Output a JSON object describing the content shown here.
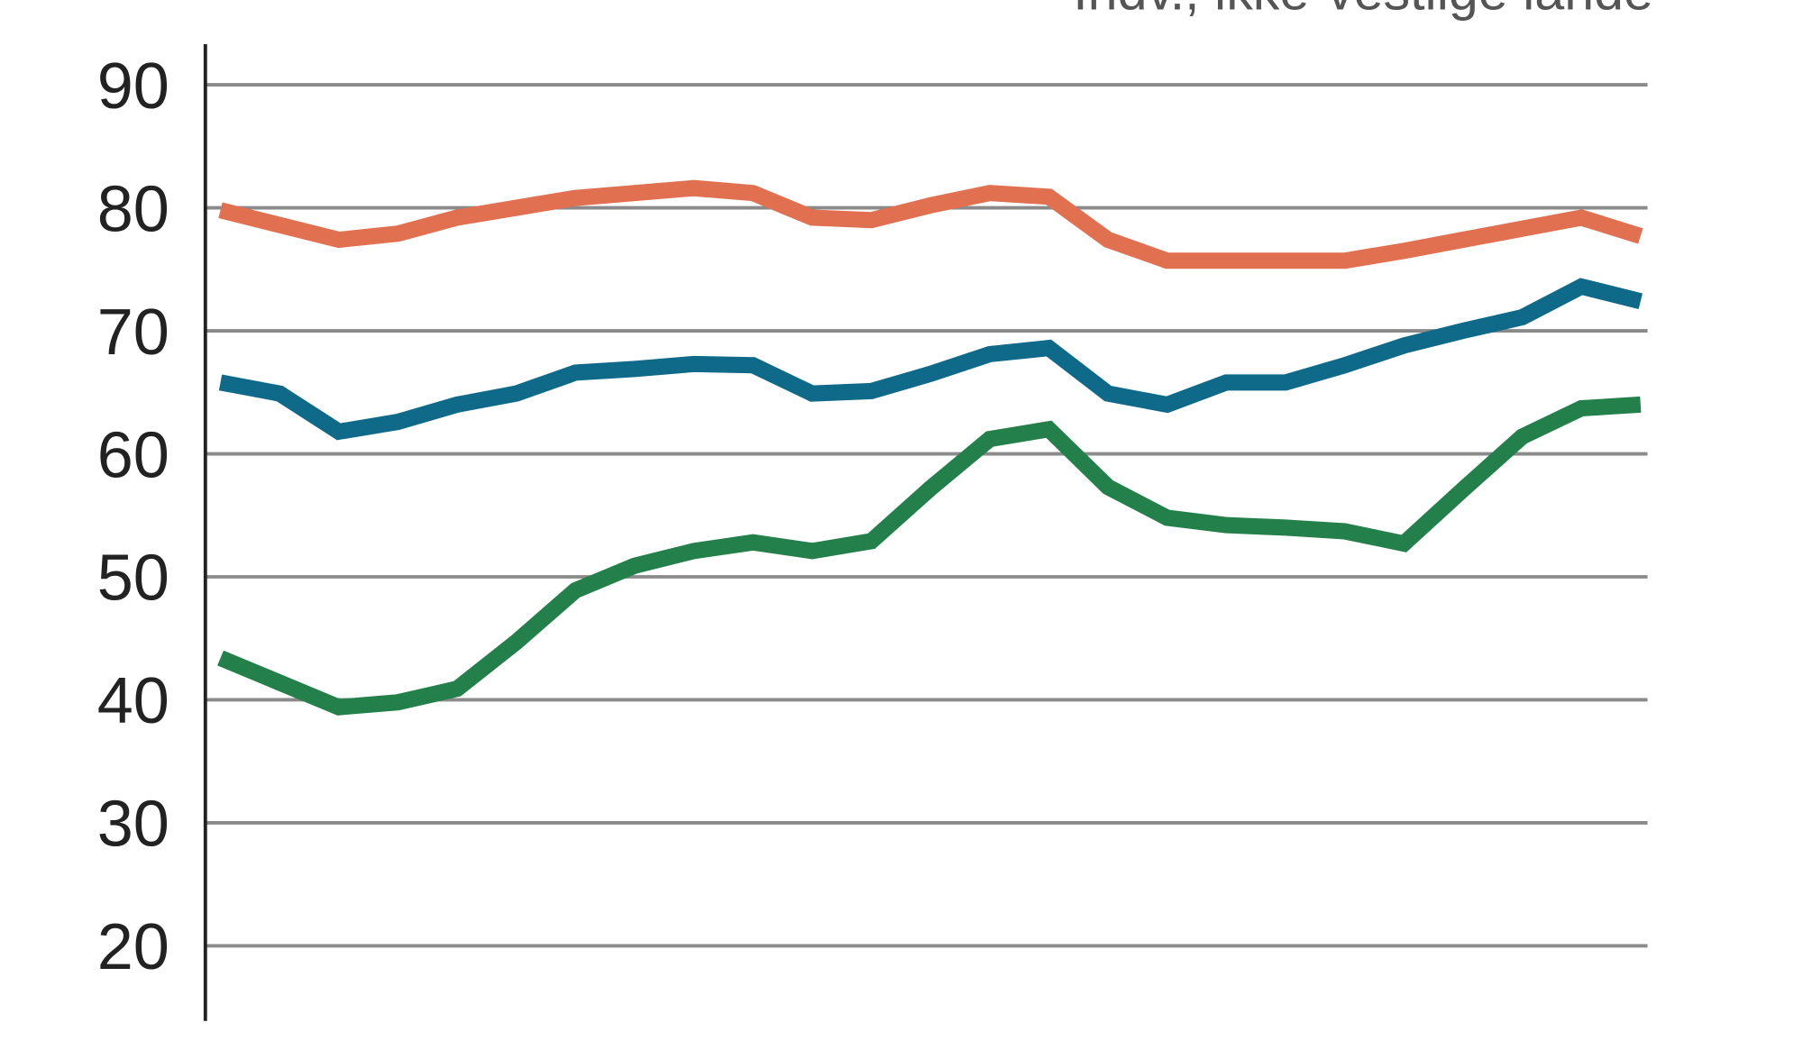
{
  "chart_data": {
    "type": "line",
    "annotation": "Indv., ikke-vestlige lande",
    "categories": [
      null,
      null,
      null,
      null,
      null,
      null,
      null,
      null,
      null,
      null,
      null,
      null,
      null,
      null,
      null,
      null,
      null,
      null,
      null,
      null,
      null,
      null,
      null,
      null,
      null
    ],
    "series": [
      {
        "color": "#e07050",
        "values": [
          79.8,
          78.6,
          77.4,
          77.9,
          79.2,
          80,
          80.8,
          81.2,
          81.6,
          81.2,
          79.2,
          79,
          80.2,
          81.2,
          80.9,
          77.4,
          75.7,
          75.7,
          75.7,
          75.7,
          76.5,
          77.4,
          78.3,
          79.2,
          77.7
        ]
      },
      {
        "color": "#0f6a8a",
        "values": [
          65.8,
          64.9,
          61.8,
          62.6,
          64,
          64.9,
          66.6,
          66.9,
          67.3,
          67.2,
          64.9,
          65.1,
          66.5,
          68.1,
          68.6,
          64.9,
          64,
          65.8,
          65.8,
          67.2,
          68.8,
          70,
          71.1,
          73.6,
          72.4
        ]
      },
      {
        "color": "#23804a",
        "values": [
          43.4,
          41.4,
          39.4,
          39.8,
          40.9,
          44.7,
          48.9,
          50.9,
          52.1,
          52.8,
          52.1,
          52.9,
          57.2,
          61.2,
          62,
          57.3,
          54.8,
          54.2,
          54,
          53.7,
          52.7,
          57.1,
          61.4,
          63.7,
          64
        ]
      }
    ],
    "ylim": [
      13.9,
      93.3
    ],
    "yticks": [
      20,
      30,
      40,
      50,
      60,
      70,
      80,
      90
    ],
    "grid": true
  }
}
